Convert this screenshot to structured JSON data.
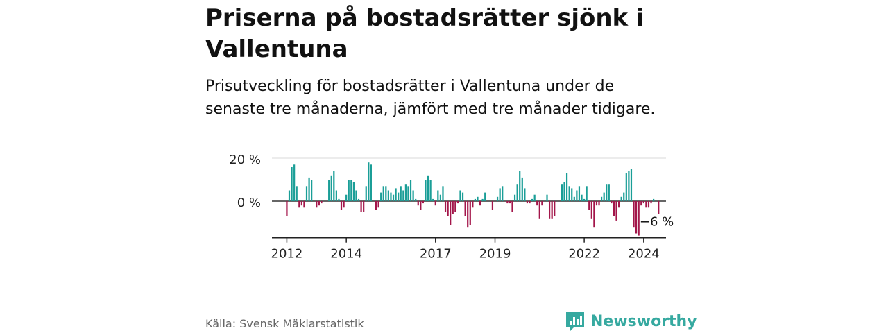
{
  "title": "Priserna på bostadsrätter sjönk i Vallentuna",
  "subtitle": "Prisutveckling för bostadsrätter i Vallentuna under de senaste tre månaderna, jämfört med tre månader tidigare.",
  "source": "Källa: Svensk Mäklarstatistik",
  "brand": "Newsworthy",
  "colors": {
    "positive": "#1a9e97",
    "negative": "#a3164a",
    "grid": "#d9d9d9",
    "zero_line": "#333333",
    "brand": "#36a9a0"
  },
  "chart_data": {
    "type": "bar",
    "title": "",
    "xlabel": "",
    "ylabel": "",
    "unit": "%",
    "ylim": [
      -17,
      22
    ],
    "x_range": [
      2011.5,
      2024.75
    ],
    "y_ticks": [
      {
        "value": 20,
        "label": "20 %"
      },
      {
        "value": 0,
        "label": "0 %"
      }
    ],
    "x_ticks": [
      {
        "value": 2012,
        "label": "2012"
      },
      {
        "value": 2014,
        "label": "2014"
      },
      {
        "value": 2017,
        "label": "2017"
      },
      {
        "value": 2019,
        "label": "2019"
      },
      {
        "value": 2022,
        "label": "2022"
      },
      {
        "value": 2024,
        "label": "2024"
      }
    ],
    "last_label": "−6 %",
    "start": 2012.0,
    "step": 0.08333,
    "values": [
      -7,
      5,
      16,
      17,
      7,
      -3,
      -2,
      -3,
      7,
      11,
      10,
      0,
      -3,
      -2,
      -1,
      0,
      0,
      10,
      12,
      14,
      5,
      1,
      -4,
      -3,
      3,
      10,
      10,
      9,
      5,
      1,
      -5,
      -5,
      7,
      18,
      17,
      0,
      -4,
      -3,
      4,
      7,
      7,
      5,
      4,
      3,
      6,
      4,
      7,
      5,
      8,
      7,
      10,
      5,
      1,
      -2,
      -4,
      -1,
      10,
      12,
      10,
      1,
      -2,
      5,
      3,
      7,
      -5,
      -7,
      -11,
      -6,
      -5,
      -1,
      5,
      4,
      -7,
      -12,
      -11,
      -3,
      1,
      2,
      -2,
      1,
      4,
      0,
      0,
      -4,
      0,
      2,
      6,
      7,
      0,
      -1,
      -1,
      -5,
      3,
      8,
      14,
      11,
      6,
      -1,
      -1,
      1,
      3,
      -2,
      -8,
      -2,
      0,
      3,
      -8,
      -8,
      -7,
      0,
      0,
      8,
      9,
      13,
      7,
      6,
      2,
      5,
      7,
      3,
      1,
      7,
      -4,
      -8,
      -12,
      -2,
      -2,
      2,
      4,
      8,
      8,
      -1,
      -7,
      -9,
      -3,
      2,
      4,
      13,
      14,
      15,
      -12,
      -15,
      -16,
      -2,
      -1,
      -3,
      -3,
      -1,
      1,
      0,
      -6
    ]
  }
}
